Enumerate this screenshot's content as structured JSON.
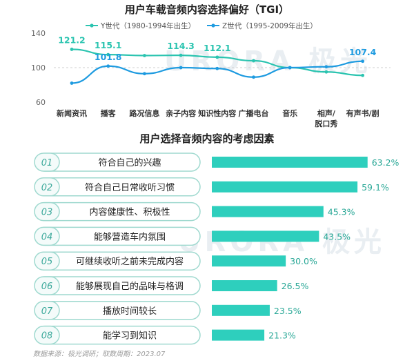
{
  "chart_data": [
    {
      "type": "line",
      "title": "用户车载音频内容选择偏好（TGI）",
      "categories": [
        "新闻资讯",
        "播客",
        "路况信息",
        "亲子内容",
        "知识性内容",
        "广播电台",
        "音乐",
        "相声/\n脱口秀",
        "有声书/剧"
      ],
      "series": [
        {
          "name": "Y世代（1980-1994年出生）",
          "color": "#2bc4b0",
          "values": [
            121.2,
            115.1,
            114,
            114.3,
            112.1,
            108,
            100,
            95,
            91
          ]
        },
        {
          "name": "Z世代（1995-2009年出生）",
          "color": "#1e9be0",
          "values": [
            82,
            101.8,
            93,
            100,
            99,
            89,
            100,
            101,
            107.4
          ]
        }
      ],
      "data_labels": [
        {
          "series": 0,
          "index": 0,
          "text": "121.2"
        },
        {
          "series": 0,
          "index": 1,
          "text": "115.1"
        },
        {
          "series": 0,
          "index": 3,
          "text": "114.3"
        },
        {
          "series": 0,
          "index": 4,
          "text": "112.1"
        },
        {
          "series": 1,
          "index": 1,
          "text": "101.8"
        },
        {
          "series": 1,
          "index": 8,
          "text": "107.4"
        }
      ],
      "yticks": [
        "140",
        "100",
        "60"
      ],
      "ylim": [
        60,
        140
      ],
      "reference_line": 100,
      "legend_position": "top"
    },
    {
      "type": "bar",
      "orientation": "horizontal",
      "title": "用户选择音频内容的考虑因素",
      "color": "#2ecfbd",
      "categories": [
        "符合自己的兴趣",
        "符合自己日常收听习惯",
        "内容健康性、积极性",
        "能够营造车内氛围",
        "可继续收听之前未完成内容",
        "能够展现自己的品味与格调",
        "播放时间较长",
        "能学习到知识"
      ],
      "index_labels": [
        "01",
        "02",
        "03",
        "04",
        "05",
        "06",
        "07",
        "08"
      ],
      "values": [
        63.2,
        59.1,
        45.3,
        43.5,
        30.0,
        26.5,
        23.5,
        21.3
      ],
      "value_labels": [
        "63.2%",
        "59.1%",
        "45.3%",
        "43.5%",
        "30.0%",
        "26.5%",
        "23.5%",
        "21.3%"
      ]
    }
  ],
  "footer": {
    "source": "数据来源：极光调研；取数周期：2023.07"
  },
  "watermark": {
    "text": "URORA 极光"
  },
  "colors": {
    "teal": "#2bc4b0",
    "blue": "#1e9be0",
    "badge_border": "#9fd9cf",
    "badge_text": "#3aa89a"
  }
}
